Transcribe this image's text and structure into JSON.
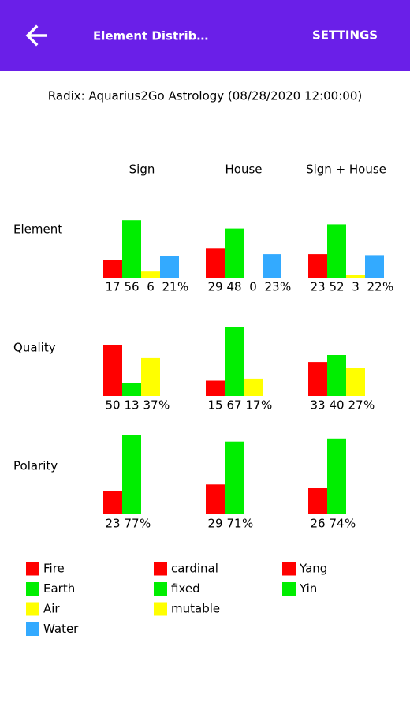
{
  "app_bar": {
    "title": "Element Distrib…",
    "action": "SETTINGS"
  },
  "radix": "Radix: Aquarius2Go Astrology  (08/28/2020 12:00:00)",
  "columns": [
    "Sign",
    "House",
    "Sign + House"
  ],
  "unit": "%",
  "rows": [
    {
      "label": "Element",
      "colors": [
        "#ff0000",
        "#00ee00",
        "#ffff00",
        "#33aaff"
      ],
      "groups": [
        {
          "values": [
            17,
            56,
            6,
            21
          ]
        },
        {
          "values": [
            29,
            48,
            0,
            23
          ]
        },
        {
          "values": [
            23,
            52,
            3,
            22
          ]
        }
      ]
    },
    {
      "label": "Quality",
      "colors": [
        "#ff0000",
        "#00ee00",
        "#ffff00"
      ],
      "groups": [
        {
          "values": [
            50,
            13,
            37
          ]
        },
        {
          "values": [
            15,
            67,
            17
          ]
        },
        {
          "values": [
            33,
            40,
            27
          ]
        }
      ]
    },
    {
      "label": "Polarity",
      "colors": [
        "#ff0000",
        "#00ee00"
      ],
      "groups": [
        {
          "values": [
            23,
            77
          ]
        },
        {
          "values": [
            29,
            71
          ]
        },
        {
          "values": [
            26,
            74
          ]
        }
      ]
    }
  ],
  "legend": [
    [
      {
        "label": "Fire",
        "color": "#ff0000"
      },
      {
        "label": "Earth",
        "color": "#00ee00"
      },
      {
        "label": "Air",
        "color": "#ffff00"
      },
      {
        "label": "Water",
        "color": "#33aaff"
      }
    ],
    [
      {
        "label": "cardinal",
        "color": "#ff0000"
      },
      {
        "label": "fixed",
        "color": "#00ee00"
      },
      {
        "label": "mutable",
        "color": "#ffff00"
      }
    ],
    [
      {
        "label": "Yang",
        "color": "#ff0000"
      },
      {
        "label": "Yin",
        "color": "#00ee00"
      }
    ]
  ]
}
